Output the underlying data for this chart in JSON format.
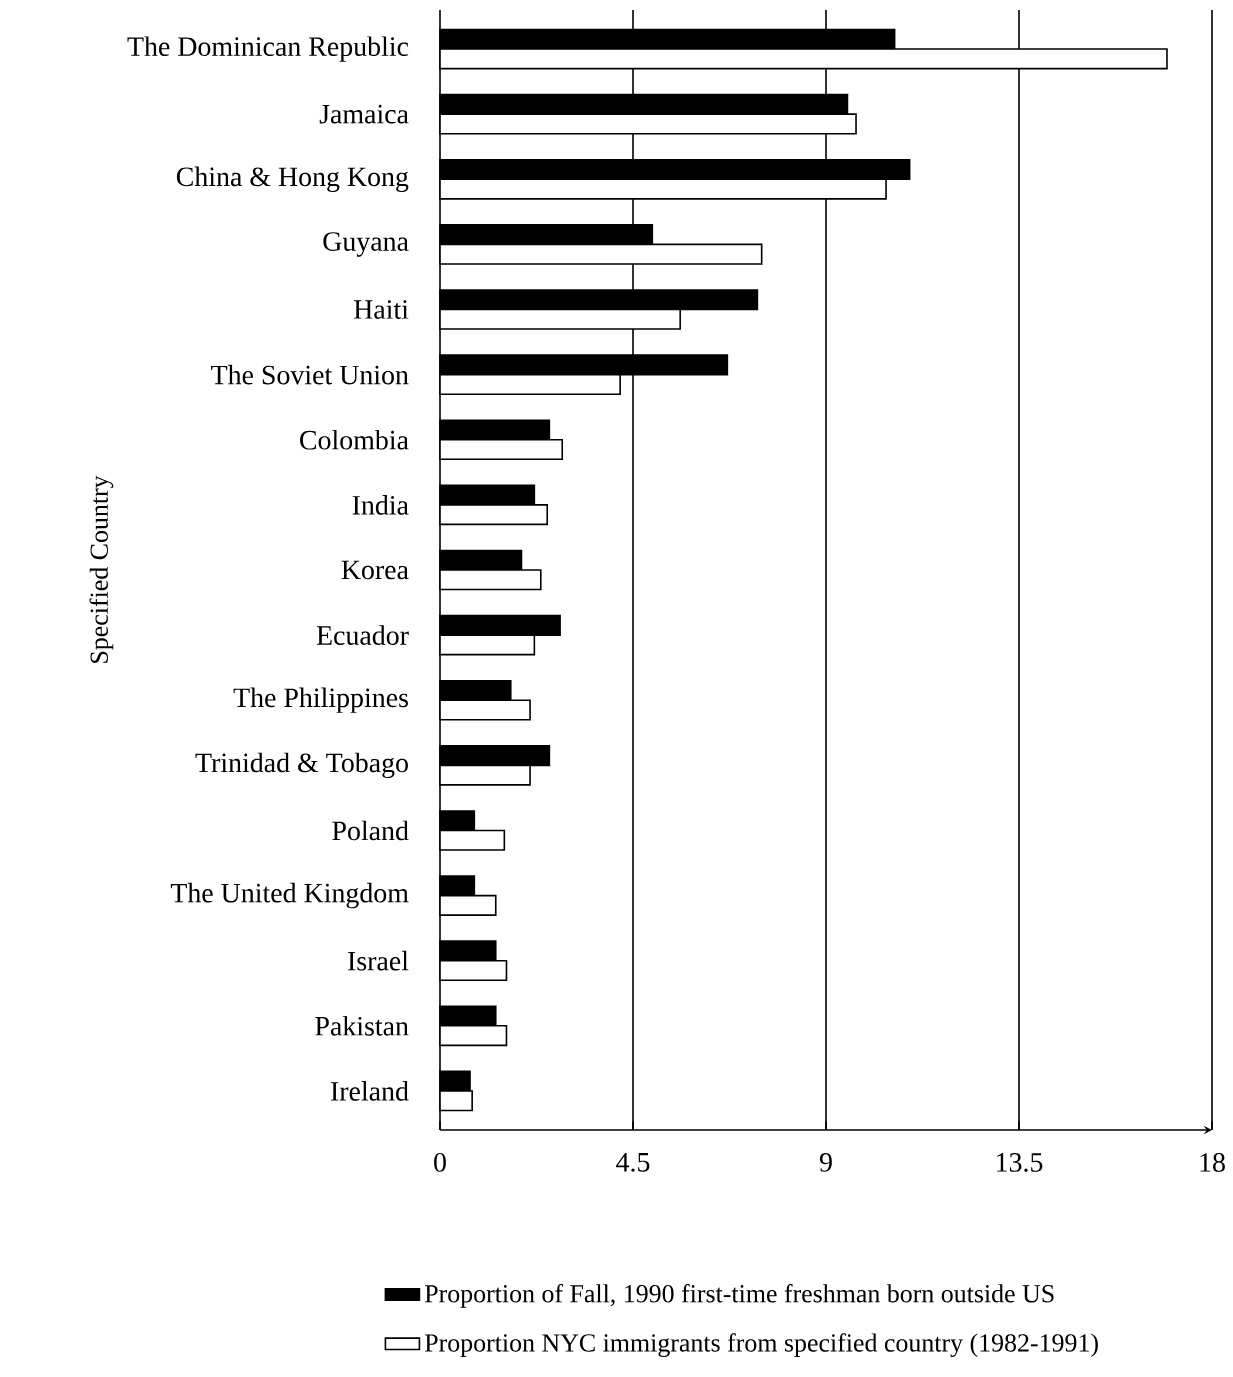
{
  "chart_data": {
    "type": "bar",
    "orientation": "horizontal",
    "ylabel": "Specified Country",
    "categories": [
      "The Dominican Republic",
      "Jamaica",
      "China & Hong Kong",
      "Guyana",
      "Haiti",
      "The Soviet Union",
      "Colombia",
      "India",
      "Korea",
      "Ecuador",
      "The Philippines",
      "Trinidad & Tobago",
      "Poland",
      "The United Kingdom",
      "Israel",
      "Pakistan",
      "Ireland"
    ],
    "series": [
      {
        "name": "Proportion of Fall, 1990 first-time freshman born outside US",
        "color": "#000000",
        "values": [
          10.6,
          9.5,
          10.95,
          4.95,
          7.4,
          6.7,
          2.55,
          2.2,
          1.9,
          2.8,
          1.65,
          2.55,
          0.8,
          0.8,
          1.3,
          1.3,
          0.7
        ]
      },
      {
        "name": "Proportion NYC immigrants from specified country (1982-1991)",
        "color": "#ffffff",
        "values": [
          16.95,
          9.7,
          10.4,
          7.5,
          5.6,
          4.2,
          2.85,
          2.5,
          2.35,
          2.2,
          2.1,
          2.1,
          1.5,
          1.3,
          1.55,
          1.55,
          0.75
        ]
      }
    ],
    "xlim": [
      0,
      18
    ],
    "xticks": [
      0,
      4.5,
      9,
      13.5,
      18
    ],
    "grid": "x",
    "legend": "bottom"
  }
}
